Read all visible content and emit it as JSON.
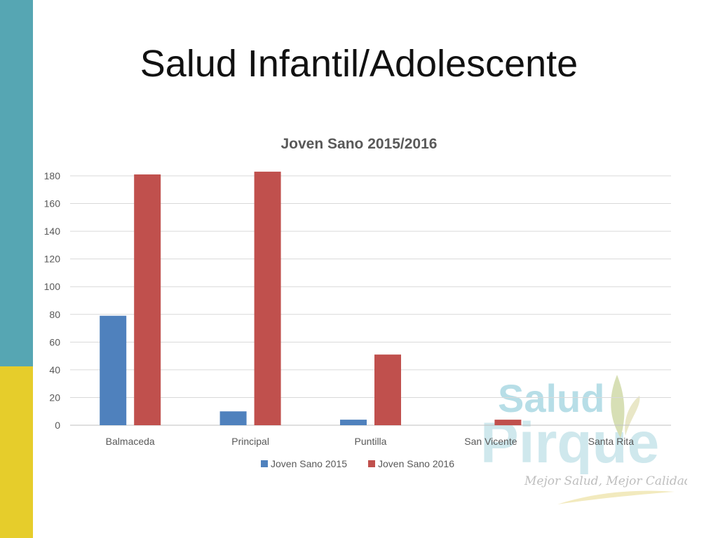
{
  "slide": {
    "title": "Salud Infantil/Adolescente"
  },
  "logo": {
    "line1": "Salud",
    "line2": "Pirque",
    "tagline": "Mejor Salud, Mejor Calidad de Vida."
  },
  "colors": {
    "teal": "#56a6b3",
    "yellow": "#e6cd2b",
    "series2015": "#4f81bd",
    "series2016": "#c0504d"
  },
  "chart_data": {
    "type": "bar",
    "title": "Joven Sano 2015/2016",
    "categories": [
      "Balmaceda",
      "Principal",
      "Puntilla",
      "San Vicente",
      "Santa Rita"
    ],
    "series": [
      {
        "name": "Joven Sano 2015",
        "color": "#4f81bd",
        "values": [
          79,
          10,
          4,
          0,
          0
        ]
      },
      {
        "name": "Joven Sano 2016",
        "color": "#c0504d",
        "values": [
          181,
          183,
          51,
          4,
          0
        ]
      }
    ],
    "ylim": [
      0,
      180
    ],
    "yticks": [
      0,
      20,
      40,
      60,
      80,
      100,
      120,
      140,
      160,
      180
    ],
    "grid": true,
    "legend": "bottom"
  }
}
